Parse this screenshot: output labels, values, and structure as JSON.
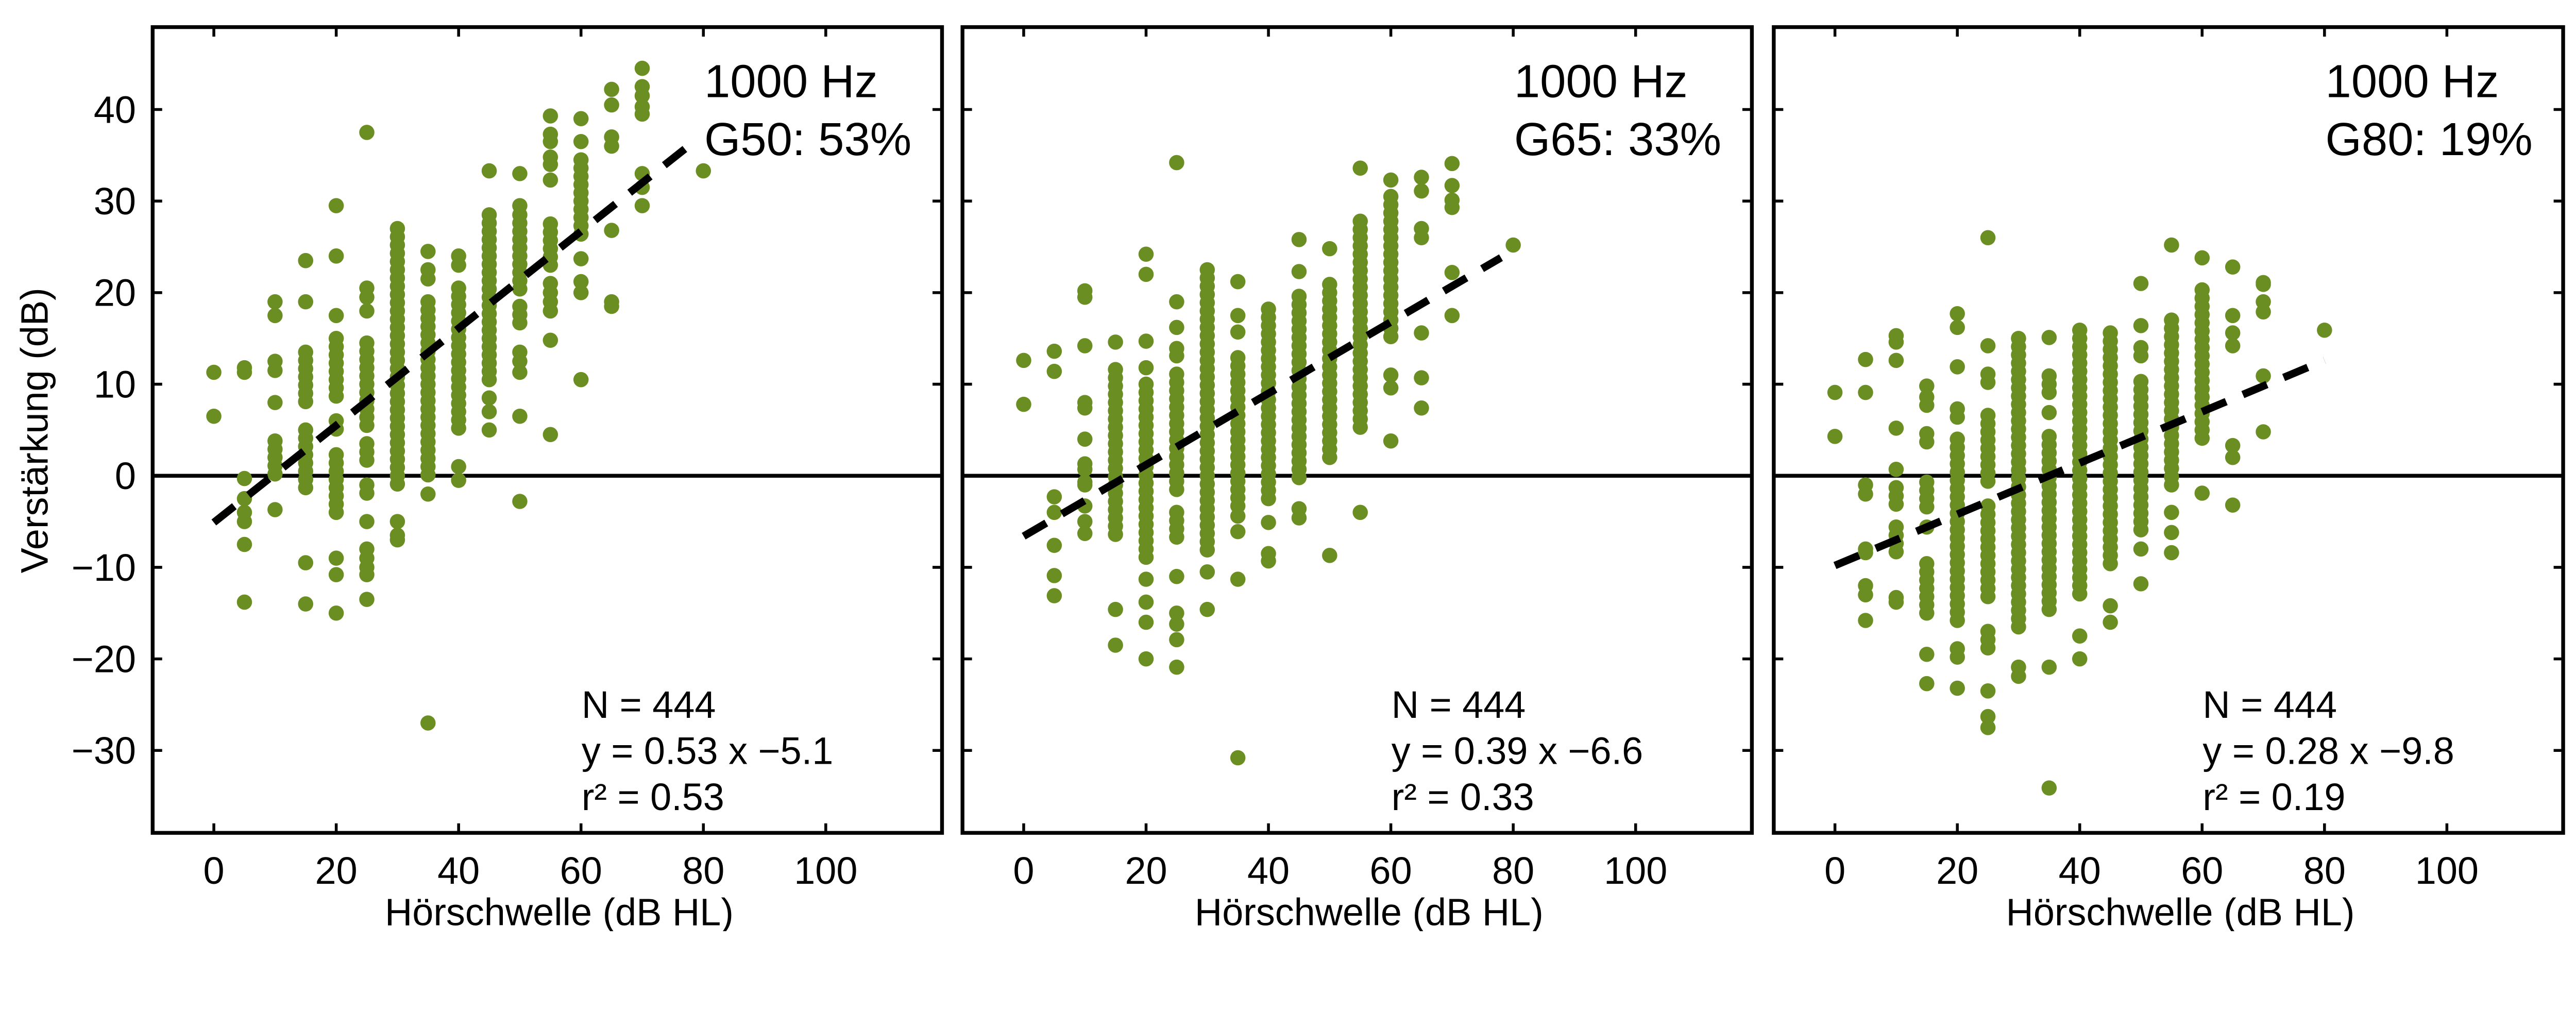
{
  "figure": {
    "ylabel": "Verstärkung (dB)",
    "xlabel": "Hörschwelle (dB HL)"
  },
  "colors": {
    "points": "#6b8e23",
    "line": "#000000"
  },
  "chart_data": [
    {
      "type": "scatter",
      "title_line1": "1000 Hz",
      "title_line2": "G50: 53%",
      "n_label": "N = 444",
      "eq_label": "y = 0.53 x −5.1",
      "r2_label": "r² = 0.53",
      "xlabel": "Hörschwelle (dB HL)",
      "ylabel": "Verstärkung (dB)",
      "xlim": [
        -10,
        119
      ],
      "ylim": [
        -39,
        49
      ],
      "xticks": [
        "0",
        "20",
        "40",
        "60",
        "80",
        "100"
      ],
      "yticks": [
        "−30",
        "−20",
        "−10",
        "0",
        "10",
        "20",
        "30",
        "40"
      ],
      "fit": {
        "slope": 0.53,
        "intercept": -5.1,
        "x_range": [
          0,
          79
        ]
      },
      "columns": [
        {
          "x": 0,
          "y": [
            11.3,
            6.5
          ]
        },
        {
          "x": 5,
          "y": [
            11.8,
            11.3,
            -0.3,
            -2.5,
            -4,
            -5,
            -7.5,
            -13.8
          ]
        },
        {
          "x": 10,
          "y": [
            19,
            17.5,
            12.5,
            11.5,
            8,
            -3.7
          ],
          "dense": [
            [
              3.8,
              0
            ]
          ]
        },
        {
          "x": 15,
          "y": [
            23.5,
            19,
            -9.5,
            -14
          ],
          "dense": [
            [
              13.5,
              7.5
            ],
            [
              5,
              -2
            ]
          ]
        },
        {
          "x": 20,
          "y": [
            29.5,
            24,
            17.5,
            -9,
            -10.8,
            -15
          ],
          "dense": [
            [
              15,
              8.5
            ],
            [
              6,
              4.5
            ],
            [
              2.3,
              -4
            ]
          ]
        },
        {
          "x": 25,
          "y": [
            37.5,
            20.5,
            19.5,
            18,
            -5,
            -8,
            -9,
            -10,
            -10.8,
            -13.5
          ],
          "dense": [
            [
              14.5,
              5
            ],
            [
              3.5,
              1.5
            ],
            [
              -1,
              -2.5
            ]
          ]
        },
        {
          "x": 30,
          "y": [
            -5,
            -6.5,
            -7
          ],
          "dense": [
            [
              27,
              -1
            ]
          ]
        },
        {
          "x": 35,
          "y": [
            24.5,
            22.5,
            21.5,
            -2,
            -27
          ],
          "dense": [
            [
              19,
              0
            ]
          ]
        },
        {
          "x": 40,
          "y": [
            24,
            23,
            1,
            -0.5
          ],
          "dense": [
            [
              20.5,
              4.5
            ]
          ]
        },
        {
          "x": 45,
          "y": [
            33.3,
            8.5,
            7,
            5
          ],
          "dense": [
            [
              28.5,
              10.5
            ]
          ]
        },
        {
          "x": 50,
          "y": [
            33,
            29.5,
            13.5,
            12.5,
            11.3,
            6.5,
            -2.8
          ],
          "dense": [
            [
              28.5,
              20
            ],
            [
              18.5,
              16.5
            ]
          ]
        },
        {
          "x": 55,
          "y": [
            39.3,
            37.3,
            36.5,
            34.8,
            34,
            32.3,
            21,
            20,
            19,
            18,
            14.8,
            4.5
          ],
          "dense": [
            [
              27.5,
              22.5
            ]
          ]
        },
        {
          "x": 60,
          "y": [
            39,
            36.5,
            23.7,
            21.2,
            20,
            10.5
          ],
          "dense": [
            [
              34.5,
              26
            ]
          ]
        },
        {
          "x": 65,
          "y": [
            42.2,
            40.5,
            37,
            36,
            26.8,
            19,
            18.5
          ]
        },
        {
          "x": 70,
          "y": [
            44.5,
            42.5,
            41.5,
            40.3,
            39.5,
            33,
            31.5,
            29.5
          ]
        },
        {
          "x": 80,
          "y": [
            33.3
          ]
        }
      ]
    },
    {
      "type": "scatter",
      "title_line1": "1000 Hz",
      "title_line2": "G65: 33%",
      "n_label": "N = 444",
      "eq_label": "y = 0.39 x −6.6",
      "r2_label": "r² = 0.33",
      "xlabel": "Hörschwelle (dB HL)",
      "xlim": [
        -10,
        119
      ],
      "ylim": [
        -39,
        49
      ],
      "xticks": [
        "0",
        "20",
        "40",
        "60",
        "80",
        "100"
      ],
      "fit": {
        "slope": 0.39,
        "intercept": -6.6,
        "x_range": [
          0,
          78
        ]
      },
      "columns": [
        {
          "x": 0,
          "y": [
            12.6,
            7.8
          ]
        },
        {
          "x": 5,
          "y": [
            13.6,
            11.4,
            -2.3,
            -4,
            -7.6,
            -10.9,
            -13.1
          ]
        },
        {
          "x": 10,
          "y": [
            20.2,
            19.5,
            14.2,
            8,
            7.4,
            4,
            1.3,
            0.7,
            -0.7,
            -1,
            -3.3,
            -5,
            -6.3
          ]
        },
        {
          "x": 15,
          "y": [
            14.6,
            -14.6,
            -18.5
          ],
          "dense": [
            [
              11.6,
              -7
            ]
          ]
        },
        {
          "x": 20,
          "y": [
            24.2,
            22,
            14.7,
            11.8,
            -11.3,
            -13.8,
            -16,
            -20
          ],
          "dense": [
            [
              10,
              -9.5
            ]
          ]
        },
        {
          "x": 25,
          "y": [
            34.2,
            19,
            16.2,
            13.9,
            13.1,
            -15,
            -16.2,
            -17.9,
            -20.9,
            -11
          ],
          "dense": [
            [
              11.1,
              -1.7
            ],
            [
              -4,
              -7.3
            ]
          ]
        },
        {
          "x": 30,
          "y": [
            -10.5,
            -14.6
          ],
          "dense": [
            [
              22.5,
              -8.6
            ]
          ]
        },
        {
          "x": 35,
          "y": [
            21.2,
            17.5,
            15.7,
            -4.4,
            -6.1,
            -11.3,
            -30.8
          ],
          "dense": [
            [
              12.9,
              -3.3
            ]
          ]
        },
        {
          "x": 40,
          "y": [
            -5.1,
            -8.5,
            -9.3
          ],
          "dense": [
            [
              18.2,
              -3.3
            ]
          ]
        },
        {
          "x": 45,
          "y": [
            25.8,
            22.3,
            -3.6,
            -4.6
          ],
          "dense": [
            [
              19.6,
              -0.7
            ]
          ]
        },
        {
          "x": 50,
          "y": [
            24.8,
            -8.7
          ],
          "dense": [
            [
              20.9,
              1.7
            ]
          ]
        },
        {
          "x": 55,
          "y": [
            33.6,
            -4
          ],
          "dense": [
            [
              27.8,
              4.9
            ]
          ]
        },
        {
          "x": 60,
          "y": [
            32.3,
            11,
            9.6,
            3.8
          ],
          "dense": [
            [
              30.5,
              14.5
            ]
          ]
        },
        {
          "x": 65,
          "y": [
            32.6,
            31.1,
            27,
            26,
            15.6,
            10.7,
            7.4
          ]
        },
        {
          "x": 70,
          "y": [
            34.1,
            31.7,
            30.1,
            29.3,
            22.2,
            17.5
          ]
        },
        {
          "x": 80,
          "y": [
            25.2
          ]
        }
      ]
    },
    {
      "type": "scatter",
      "title_line1": "1000 Hz",
      "title_line2": "G80: 19%",
      "n_label": "N = 444",
      "eq_label": "y = 0.28 x −9.8",
      "r2_label": "r² = 0.19",
      "xlabel": "Hörschwelle (dB HL)",
      "xlim": [
        -10,
        119
      ],
      "ylim": [
        -39,
        49
      ],
      "xticks": [
        "0",
        "20",
        "40",
        "60",
        "80",
        "100"
      ],
      "fit": {
        "slope": 0.28,
        "intercept": -9.8,
        "x_range": [
          0,
          80
        ]
      },
      "columns": [
        {
          "x": 0,
          "y": [
            9.1,
            4.3
          ]
        },
        {
          "x": 5,
          "y": [
            12.7,
            9.1,
            -1,
            -2,
            -8,
            -8.4,
            -12,
            -13,
            -15.8
          ]
        },
        {
          "x": 10,
          "y": [
            15.3,
            14.6,
            12.6,
            5.2,
            0.7,
            -13.3,
            -13.8
          ],
          "dense": [
            [
              -1.3,
              -3.6
            ],
            [
              -5.6,
              -8.6
            ]
          ]
        },
        {
          "x": 15,
          "y": [
            9.8,
            -19.5,
            -22.7
          ],
          "dense": [
            [
              8.6,
              7.6
            ],
            [
              4.6,
              3.6
            ],
            [
              -0.7,
              -4
            ],
            [
              -5.6,
              -6.3
            ],
            [
              -9.6,
              -15.4
            ]
          ]
        },
        {
          "x": 20,
          "y": [
            17.7,
            16.2,
            11.9,
            -23.2
          ],
          "dense": [
            [
              7.3,
              5.6
            ],
            [
              4,
              -16.2
            ],
            [
              -18.9,
              -20.5
            ]
          ]
        },
        {
          "x": 25,
          "y": [
            26,
            14.2,
            -23.5,
            -26.3,
            -27.5
          ],
          "dense": [
            [
              11.1,
              10
            ],
            [
              6.6,
              -1
            ],
            [
              -3.3,
              -13.5
            ],
            [
              -17,
              -19.5
            ]
          ]
        },
        {
          "x": 30,
          "y": [
            -20.9,
            -21.9
          ],
          "dense": [
            [
              15,
              -16.6
            ]
          ]
        },
        {
          "x": 35,
          "y": [
            15.1,
            6.9,
            -20.9,
            -34.1
          ],
          "dense": [
            [
              10.9,
              8.6
            ],
            [
              4.3,
              -14.7
            ]
          ]
        },
        {
          "x": 40,
          "y": [
            -17.5,
            -20
          ],
          "dense": [
            [
              15.9,
              -13.2
            ]
          ]
        },
        {
          "x": 45,
          "y": [
            -14.2,
            -16
          ],
          "dense": [
            [
              15.6,
              -9.6
            ]
          ]
        },
        {
          "x": 50,
          "y": [
            21,
            16.4,
            -8,
            -11.8
          ],
          "dense": [
            [
              14,
              13
            ],
            [
              10.3,
              -6
            ]
          ]
        },
        {
          "x": 55,
          "y": [
            25.2,
            -4,
            -6.2,
            -8.4
          ],
          "dense": [
            [
              17,
              -1.7
            ]
          ]
        },
        {
          "x": 60,
          "y": [
            23.8,
            -1.9
          ],
          "dense": [
            [
              20.3,
              3.3
            ]
          ]
        },
        {
          "x": 65,
          "y": [
            22.8,
            17.5,
            15.6,
            14.2,
            3.3,
            2,
            -3.2
          ]
        },
        {
          "x": 70,
          "y": [
            21.1,
            20.9,
            19,
            17.9,
            10.9,
            4.8
          ]
        },
        {
          "x": 80,
          "y": [
            15.9
          ]
        }
      ]
    }
  ]
}
